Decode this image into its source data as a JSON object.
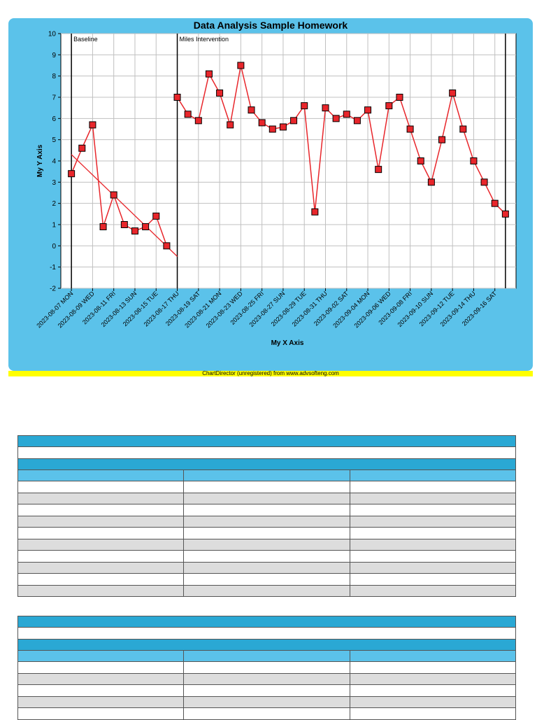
{
  "chart_data": {
    "type": "line",
    "title": "Data Analysis Sample Homework",
    "xlabel": "My X Axis",
    "ylabel": "My Y Axis",
    "ylim": [
      -2,
      10
    ],
    "yticks": [
      -2,
      -1,
      0,
      1,
      2,
      3,
      4,
      5,
      6,
      7,
      8,
      9,
      10
    ],
    "grid": true,
    "x_range": [
      "2023-08-06",
      "2023-09-18"
    ],
    "x_tick_labels": [
      {
        "date": "2023-08-07",
        "label": "2023-08-07 MON"
      },
      {
        "date": "2023-08-09",
        "label": "2023-08-09 WED"
      },
      {
        "date": "2023-08-11",
        "label": "2023-08-11 FRI"
      },
      {
        "date": "2023-08-13",
        "label": "2023-08-13 SUN"
      },
      {
        "date": "2023-08-15",
        "label": "2023-08-15 TUE"
      },
      {
        "date": "2023-08-17",
        "label": "2023-08-17 THU"
      },
      {
        "date": "2023-08-19",
        "label": "2023-08-19 SAT"
      },
      {
        "date": "2023-08-21",
        "label": "2023-08-21 MON"
      },
      {
        "date": "2023-08-23",
        "label": "2023-08-23 WED"
      },
      {
        "date": "2023-08-25",
        "label": "2023-08-25 FRI"
      },
      {
        "date": "2023-08-27",
        "label": "2023-08-27 SUN"
      },
      {
        "date": "2023-08-29",
        "label": "2023-08-29 TUE"
      },
      {
        "date": "2023-08-31",
        "label": "2023-08-31 THU"
      },
      {
        "date": "2023-09-02",
        "label": "2023-09-02 SAT"
      },
      {
        "date": "2023-09-04",
        "label": "2023-09-04 MON"
      },
      {
        "date": "2023-09-06",
        "label": "2023-09-06 WED"
      },
      {
        "date": "2023-09-08",
        "label": "2023-09-08 FRI"
      },
      {
        "date": "2023-09-10",
        "label": "2023-09-10 SUN"
      },
      {
        "date": "2023-09-12",
        "label": "2023-09-12 TUE"
      },
      {
        "date": "2023-09-14",
        "label": "2023-09-14 THU"
      },
      {
        "date": "2023-09-16",
        "label": "2023-09-16 SAT"
      }
    ],
    "phases": [
      {
        "label": "Baseline",
        "start": "2023-08-07"
      },
      {
        "label": "Miles Intervention",
        "start": "2023-08-17"
      }
    ],
    "end_line": "2023-09-17",
    "series": [
      {
        "phase": "Baseline",
        "x": [
          "2023-08-07",
          "2023-08-08",
          "2023-08-09",
          "2023-08-10",
          "2023-08-11",
          "2023-08-12",
          "2023-08-13",
          "2023-08-14",
          "2023-08-15",
          "2023-08-16"
        ],
        "y": [
          3.4,
          4.6,
          5.7,
          0.9,
          2.4,
          1.0,
          0.7,
          0.9,
          1.4,
          0.0
        ]
      },
      {
        "phase": "Miles Intervention",
        "x": [
          "2023-08-17",
          "2023-08-18",
          "2023-08-19",
          "2023-08-20",
          "2023-08-21",
          "2023-08-22",
          "2023-08-23",
          "2023-08-24",
          "2023-08-25",
          "2023-08-26",
          "2023-08-27",
          "2023-08-28",
          "2023-08-29",
          "2023-08-30",
          "2023-08-31",
          "2023-09-01",
          "2023-09-02",
          "2023-09-03",
          "2023-09-04",
          "2023-09-05",
          "2023-09-06",
          "2023-09-07",
          "2023-09-08",
          "2023-09-09",
          "2023-09-10",
          "2023-09-11",
          "2023-09-12",
          "2023-09-13",
          "2023-09-14",
          "2023-09-15",
          "2023-09-16",
          "2023-09-17"
        ],
        "y": [
          7.0,
          6.2,
          5.9,
          8.1,
          7.2,
          5.7,
          8.5,
          6.4,
          5.8,
          5.5,
          5.6,
          5.9,
          6.6,
          1.6,
          6.5,
          6.0,
          6.2,
          5.9,
          6.4,
          3.6,
          6.6,
          7.0,
          5.5,
          4.0,
          3.0,
          5.0,
          7.2,
          5.5,
          4.0,
          3.0,
          2.0,
          1.5
        ]
      }
    ],
    "trend_lines": [
      {
        "phase": "Baseline",
        "from": {
          "x": "2023-08-07",
          "y": 4.3
        },
        "to": {
          "x": "2023-08-17",
          "y": -0.5
        }
      }
    ],
    "colors": {
      "line": "#e8262b",
      "marker": "#e8262b",
      "panel": "#5bc2ea",
      "plot_bg": "#ffffff",
      "grid": "#c0c0c0"
    }
  },
  "footer": {
    "banner_text": "ChartDirector (unregistered) from www.advsofteng.com"
  },
  "tables": [
    {
      "rows": 10,
      "columns": 3
    },
    {
      "rows": 5,
      "columns": 3
    }
  ]
}
